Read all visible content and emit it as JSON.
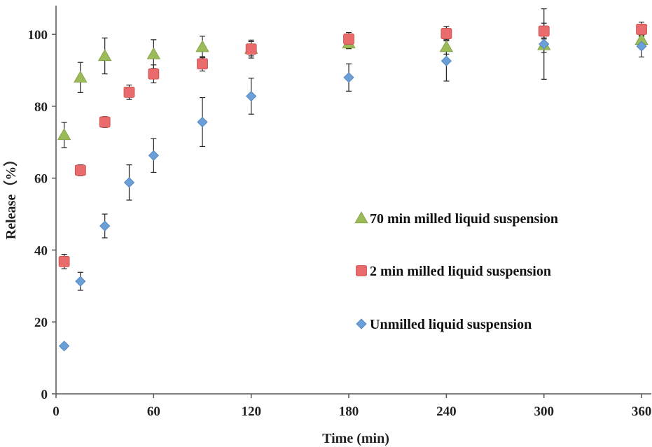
{
  "chart_data": {
    "type": "scatter",
    "xlabel": "Time (min)",
    "ylabel": "Release（%）",
    "xlim": [
      0,
      366
    ],
    "ylim": [
      0,
      108
    ],
    "xticks": [
      0,
      60,
      120,
      180,
      240,
      300,
      360
    ],
    "yticks": [
      0,
      20,
      40,
      60,
      80,
      100
    ],
    "grid": false,
    "legend_position": "center-right",
    "series": [
      {
        "name": "70 min milled liquid suspension",
        "marker": "triangle",
        "color": "#9bbb59",
        "points": [
          {
            "x": 5,
            "y": 72,
            "err": 3.5
          },
          {
            "x": 15,
            "y": 88,
            "err": 4.2
          },
          {
            "x": 30,
            "y": 94,
            "err": 5.0
          },
          {
            "x": 60,
            "y": 94.5,
            "err": 4.0
          },
          {
            "x": 90,
            "y": 96.5,
            "err": 3.0
          },
          {
            "x": 120,
            "y": 96,
            "err": 2.0
          },
          {
            "x": 180,
            "y": 97.5,
            "err": 1.5
          },
          {
            "x": 240,
            "y": 96.5,
            "err": 2.0
          },
          {
            "x": 300,
            "y": 97,
            "err": 2.0
          },
          {
            "x": 360,
            "y": 98.5,
            "err": 1.5
          }
        ]
      },
      {
        "name": "2 min milled liquid suspension",
        "marker": "square",
        "color": "#e96b6b",
        "points": [
          {
            "x": 5,
            "y": 36.8,
            "err": 2.0
          },
          {
            "x": 15,
            "y": 62.2,
            "err": 1.5
          },
          {
            "x": 30,
            "y": 75.6,
            "err": 1.5
          },
          {
            "x": 45,
            "y": 83.9,
            "err": 2.0
          },
          {
            "x": 60,
            "y": 89,
            "err": 2.5
          },
          {
            "x": 90,
            "y": 91.8,
            "err": 2.0
          },
          {
            "x": 120,
            "y": 95.9,
            "err": 2.5
          },
          {
            "x": 180,
            "y": 98.7,
            "err": 1.8
          },
          {
            "x": 240,
            "y": 100.2,
            "err": 2.0
          },
          {
            "x": 300,
            "y": 100.9,
            "err": 2.2
          },
          {
            "x": 360,
            "y": 101.4,
            "err": 2.0
          }
        ]
      },
      {
        "name": "Unmilled liquid suspension",
        "marker": "diamond",
        "color": "#6a9fd8",
        "points": [
          {
            "x": 5,
            "y": 13.3,
            "err": 0.7
          },
          {
            "x": 15,
            "y": 31.3,
            "err": 2.5
          },
          {
            "x": 30,
            "y": 46.7,
            "err": 3.3
          },
          {
            "x": 45,
            "y": 58.8,
            "err": 4.9
          },
          {
            "x": 60,
            "y": 66.3,
            "err": 4.7
          },
          {
            "x": 90,
            "y": 75.6,
            "err": 6.8
          },
          {
            "x": 120,
            "y": 82.8,
            "err": 5.0
          },
          {
            "x": 180,
            "y": 88,
            "err": 3.8
          },
          {
            "x": 240,
            "y": 92.6,
            "err": 5.6
          },
          {
            "x": 300,
            "y": 97.3,
            "err": 9.8
          },
          {
            "x": 360,
            "y": 96.7,
            "err": 3.0
          }
        ]
      }
    ]
  }
}
